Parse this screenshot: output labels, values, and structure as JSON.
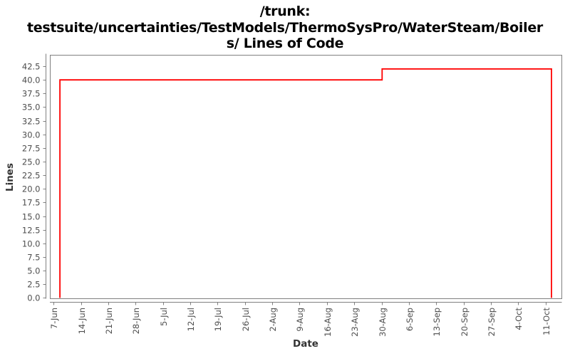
{
  "header": {
    "title_line1": "/trunk:",
    "title_line2": "testsuite/uncertainties/TestModels/ThermoSysPro/WaterSteam/Boiler",
    "title_line3": "s/ Lines of Code"
  },
  "chart_data": {
    "type": "line",
    "style": "step",
    "title": "/trunk: testsuite/uncertainties/TestModels/ThermoSysPro/WaterSteam/Boilers/ Lines of Code",
    "xlabel": "Date",
    "ylabel": "Lines",
    "x_tick_labels": [
      "7-Jun",
      "14-Jun",
      "21-Jun",
      "28-Jun",
      "5-Jul",
      "12-Jul",
      "19-Jul",
      "26-Jul",
      "2-Aug",
      "9-Aug",
      "16-Aug",
      "23-Aug",
      "30-Aug",
      "6-Sep",
      "13-Sep",
      "20-Sep",
      "27-Sep",
      "4-Oct",
      "11-Oct"
    ],
    "y_tick_labels": [
      "0.0",
      "2.5",
      "5.0",
      "7.5",
      "10.0",
      "12.5",
      "15.0",
      "17.5",
      "20.0",
      "22.5",
      "25.0",
      "27.5",
      "30.0",
      "32.5",
      "35.0",
      "37.5",
      "40.0",
      "42.5"
    ],
    "y_tick_step": 2.5,
    "ylim": [
      0,
      44.6
    ],
    "xlim_weeks": [
      -0.14,
      18.6
    ],
    "grid": false,
    "legend": false,
    "line_color": "#ff0000",
    "axis_color": "#808080",
    "tick_label_color": "#4d4d4d",
    "series": [
      {
        "name": "Lines of Code",
        "points_weeks_vs_lines": [
          [
            0.23,
            0
          ],
          [
            0.23,
            40
          ],
          [
            12.02,
            40
          ],
          [
            12.02,
            42
          ],
          [
            18.22,
            42
          ],
          [
            18.22,
            0
          ]
        ],
        "segments": [
          {
            "from": "8-Jun",
            "to": "30-Aug",
            "lines": 40
          },
          {
            "from": "30-Aug",
            "to": "12-Oct",
            "lines": 42
          }
        ]
      }
    ]
  }
}
